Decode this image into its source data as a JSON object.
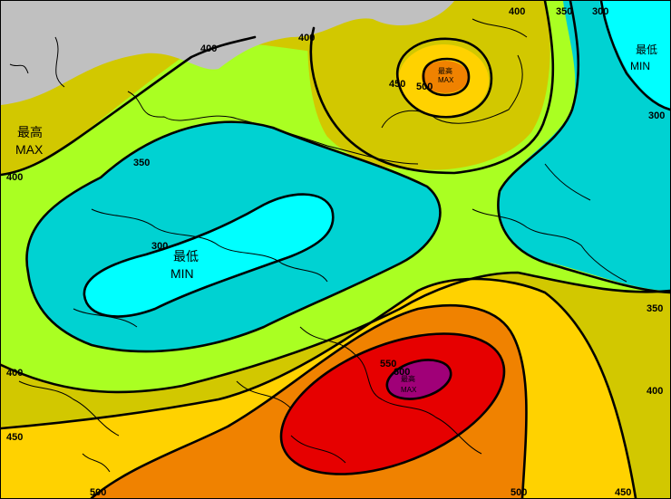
{
  "map": {
    "contour_labels": {
      "l400_nw": "400",
      "l400_top": "400",
      "l400_tr": "400",
      "l350_top": "350",
      "l300_top": "300",
      "l400_left": "400",
      "l350_left": "350",
      "l300_left": "300",
      "l300_right": "300",
      "l350_right": "350",
      "l400_right": "400",
      "l400_lower_left": "400",
      "l450_lower_left": "450",
      "l500_bottom_left": "500",
      "l450_ne": "450",
      "l500_ne": "500",
      "l550_se": "550",
      "l600_se": "600",
      "l500_bottom": "500",
      "l450_bottom": "450"
    },
    "extrema": {
      "max_west": {
        "zh": "最高",
        "en": "MAX"
      },
      "max_ne": {
        "zh": "最高",
        "en": "MAX"
      },
      "max_se": {
        "zh": "最高",
        "en": "MAX"
      },
      "min_center": {
        "zh": "最低",
        "en": "MIN"
      },
      "min_ne": {
        "zh": "最低",
        "en": "MIN"
      }
    },
    "colors": {
      "land_gray": "#c0c0c0",
      "band_below_300": "#00ffff",
      "band_300_350": "#00d2d2",
      "band_350_400": "#aaff22",
      "band_400_450": "#d2c800",
      "band_450_500": "#ffd200",
      "band_500_550": "#f08200",
      "band_550_600": "#e60000",
      "band_above_600": "#a00078"
    }
  }
}
